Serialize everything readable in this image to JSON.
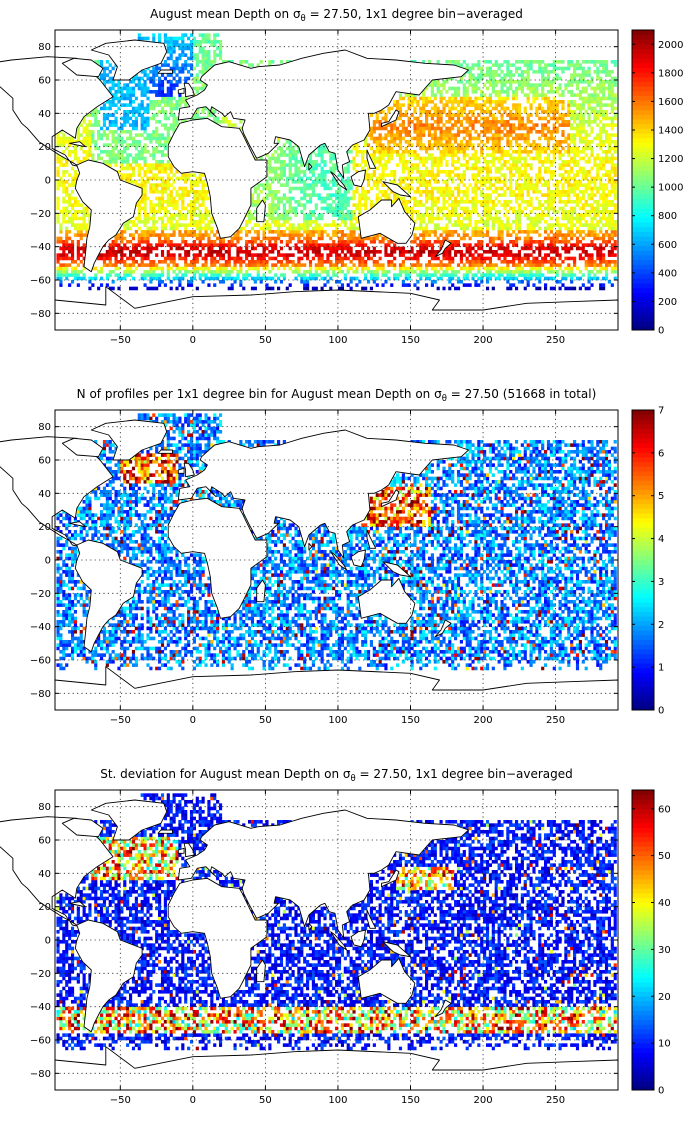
{
  "colormap": "jet",
  "land_color": "#ffffff",
  "coastline_color": "#000000",
  "chart_data": [
    {
      "type": "heatmap",
      "title_parts": [
        "August mean Depth on ",
        "σ",
        "θ",
        " = 27.50, 1x1 degree bin−averaged"
      ],
      "xlim": [
        -95,
        293
      ],
      "ylim": [
        -90,
        90
      ],
      "xticks": [
        -50,
        0,
        50,
        100,
        150,
        200,
        250
      ],
      "yticks": [
        -80,
        -60,
        -40,
        -20,
        0,
        20,
        40,
        60,
        80
      ],
      "grid": true,
      "colorbar": {
        "range": [
          0,
          2100
        ],
        "ticks": [
          0,
          200,
          400,
          600,
          800,
          1000,
          1200,
          1400,
          1600,
          1800,
          2000
        ]
      },
      "bin_deg": 1,
      "field": "mean_depth"
    },
    {
      "type": "heatmap",
      "title_parts": [
        "N of profiles per 1x1 degree bin for August mean Depth on ",
        "σ",
        "θ",
        " = 27.50 (51668 in total)"
      ],
      "xlim": [
        -95,
        293
      ],
      "ylim": [
        -90,
        90
      ],
      "xticks": [
        -50,
        0,
        50,
        100,
        150,
        200,
        250
      ],
      "yticks": [
        -80,
        -60,
        -40,
        -20,
        0,
        20,
        40,
        60,
        80
      ],
      "grid": true,
      "colorbar": {
        "range": [
          0,
          7
        ],
        "ticks": [
          0,
          1,
          2,
          3,
          4,
          5,
          6,
          7
        ]
      },
      "bin_deg": 1,
      "total_profiles": 51668,
      "field": "profile_count"
    },
    {
      "type": "heatmap",
      "title_parts": [
        "St. deviation for August mean Depth on ",
        "σ",
        "θ",
        " = 27.50, 1x1 degree bin−averaged"
      ],
      "xlim": [
        -95,
        293
      ],
      "ylim": [
        -90,
        90
      ],
      "xticks": [
        -50,
        0,
        50,
        100,
        150,
        200,
        250
      ],
      "yticks": [
        -80,
        -60,
        -40,
        -20,
        0,
        20,
        40,
        60,
        80
      ],
      "grid": true,
      "colorbar": {
        "range": [
          0,
          64
        ],
        "ticks": [
          0,
          10,
          20,
          30,
          40,
          50,
          60
        ]
      },
      "bin_deg": 1,
      "field": "std_depth"
    }
  ]
}
